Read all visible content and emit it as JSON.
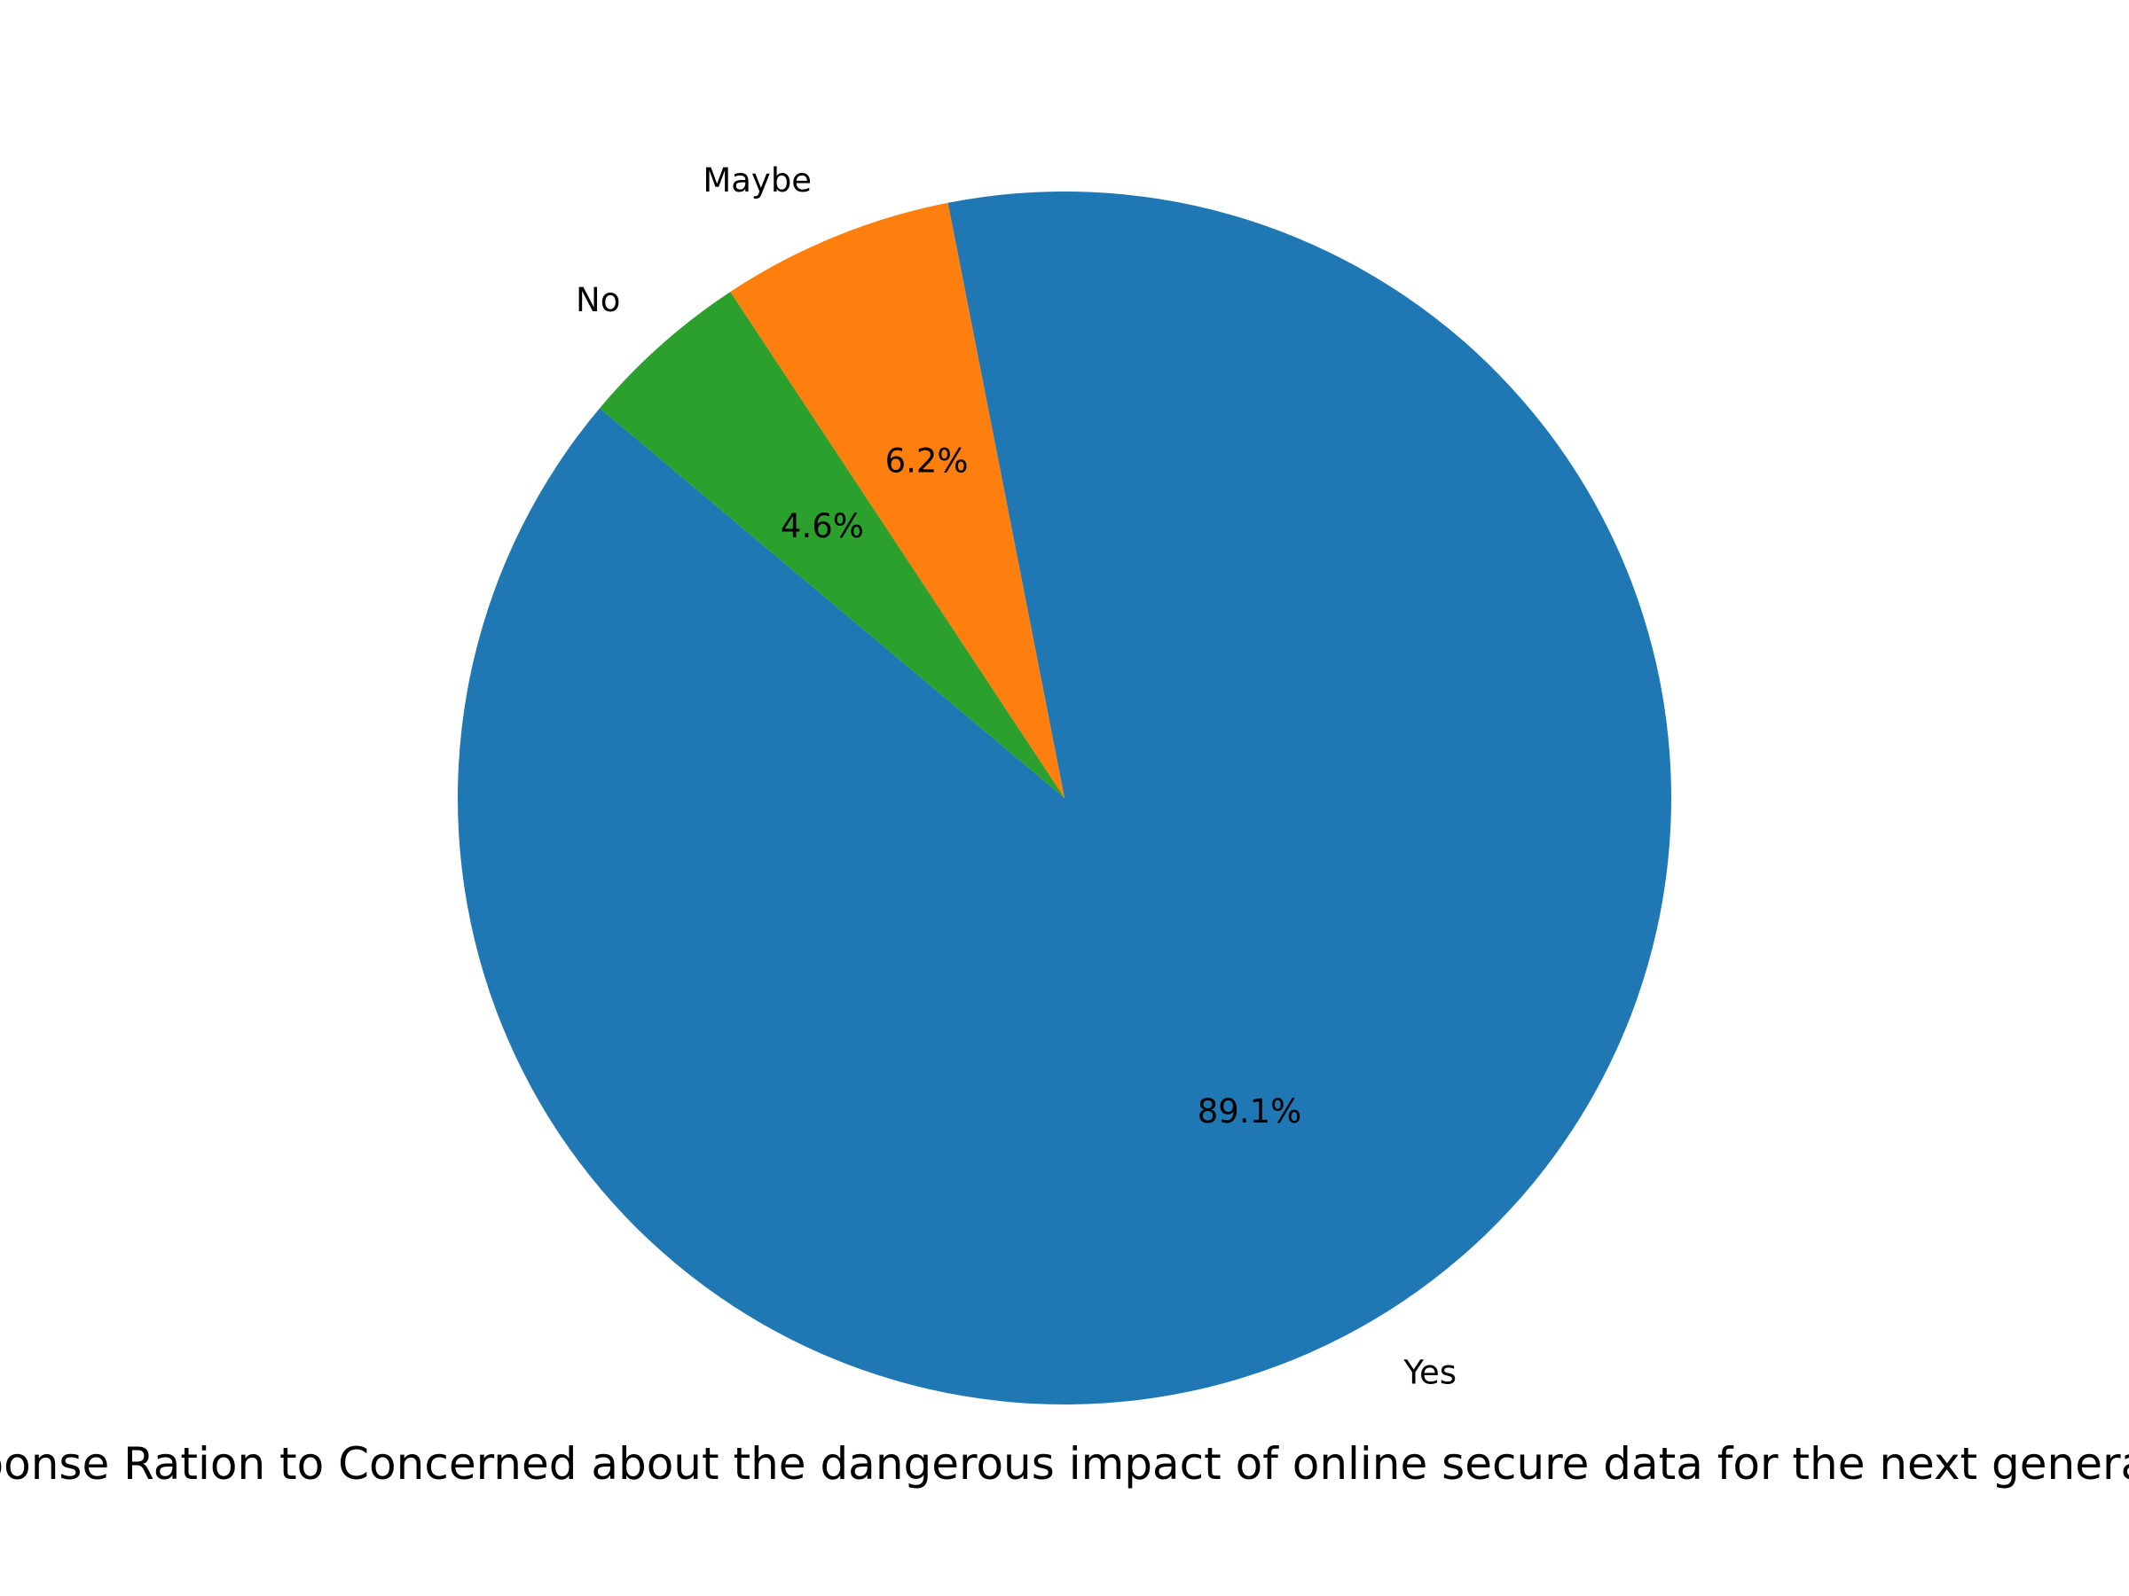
{
  "chart_data": {
    "type": "pie",
    "xlabel": "Response Ration to Concerned about the dangerous impact of online secure data for the next generation",
    "slices": [
      {
        "label": "Yes",
        "value": 89.1,
        "pct_label": "89.1%",
        "color": "#1f77b4"
      },
      {
        "label": "Maybe",
        "value": 6.2,
        "pct_label": "6.2%",
        "color": "#ff7f0e"
      },
      {
        "label": "No",
        "value": 4.6,
        "pct_label": "4.6%",
        "color": "#2ca02c"
      }
    ]
  }
}
